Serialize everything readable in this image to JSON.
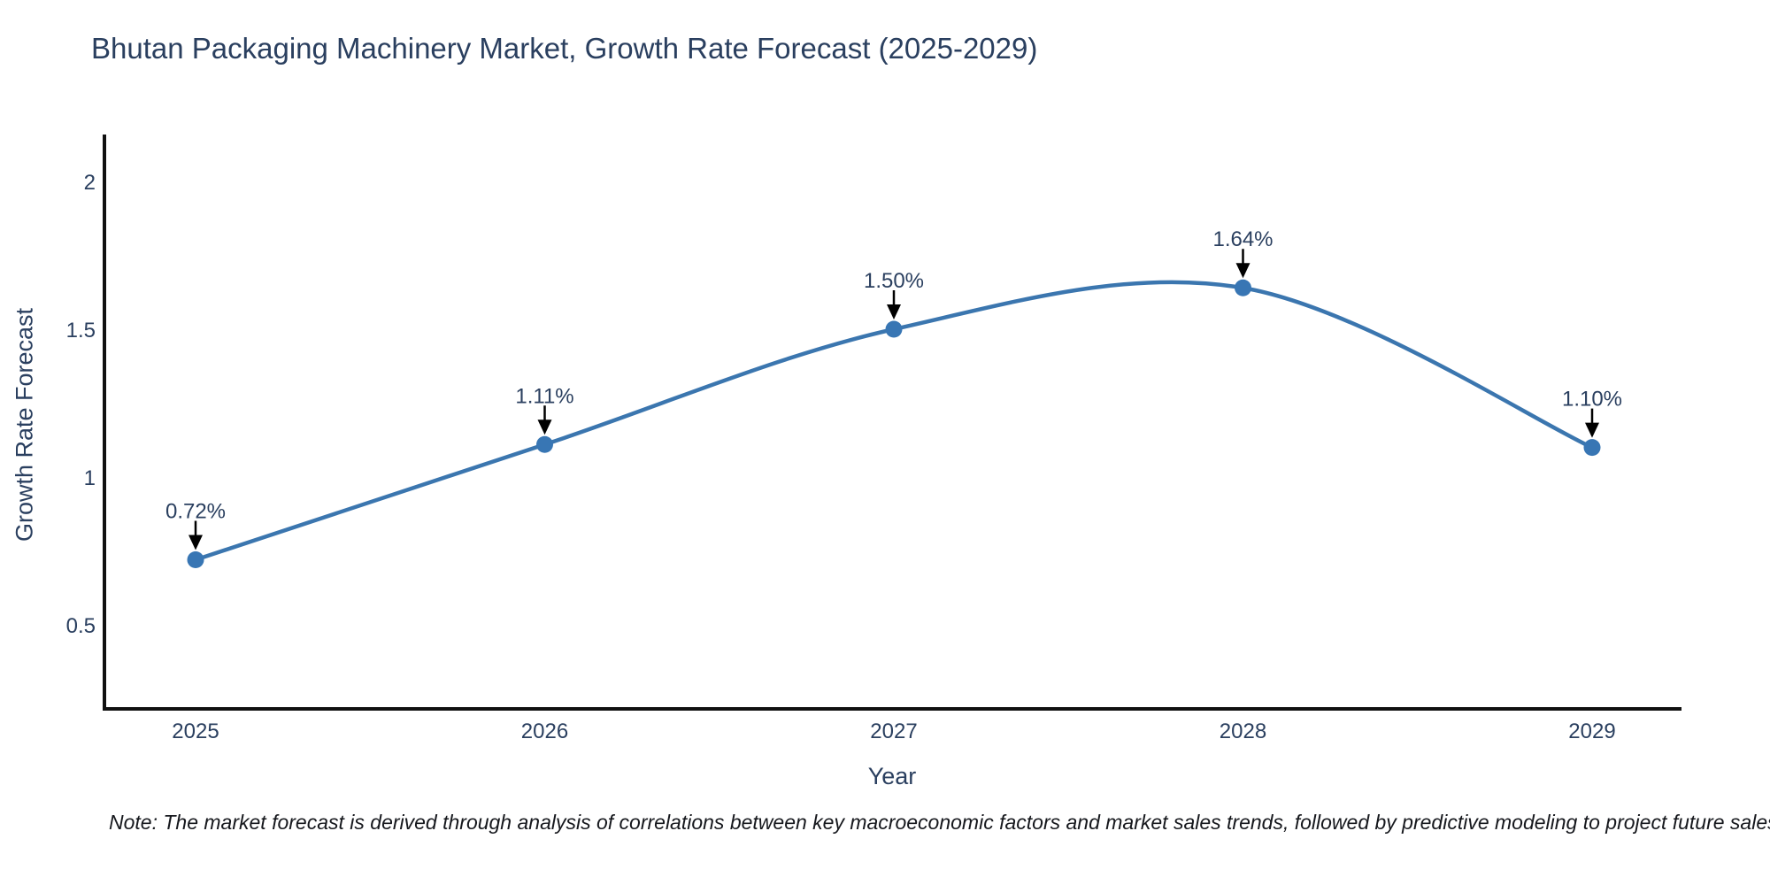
{
  "note": "Note: The market forecast is derived through analysis of correlations between key macroeconomic factors and market sales trends, followed by predictive modeling to project future sales",
  "chart_data": {
    "type": "line",
    "title": "Bhutan Packaging Machinery Market, Growth Rate Forecast (2025-2029)",
    "xlabel": "Year",
    "ylabel": "Growth Rate Forecast",
    "categories": [
      "2025",
      "2026",
      "2027",
      "2028",
      "2029"
    ],
    "values": [
      0.72,
      1.11,
      1.5,
      1.64,
      1.1
    ],
    "point_labels": [
      "0.72%",
      "1.11%",
      "1.50%",
      "1.64%",
      "1.10%"
    ],
    "series_name": "Growth Rate Forecast",
    "line_shape": "spline",
    "grid": false,
    "legend_position": "none",
    "yticks": [
      0.5,
      1,
      1.5,
      2
    ],
    "ytick_labels": [
      "0.5",
      "1",
      "1.5",
      "2"
    ],
    "ylim": [
      0.23,
      2.15
    ],
    "colors": {
      "line": "#3b76af",
      "marker": "#3876b4",
      "arrow": "#000000",
      "title": "#2a3f5f",
      "axis_line": "#111111",
      "tick": "#2a3f5f"
    }
  }
}
